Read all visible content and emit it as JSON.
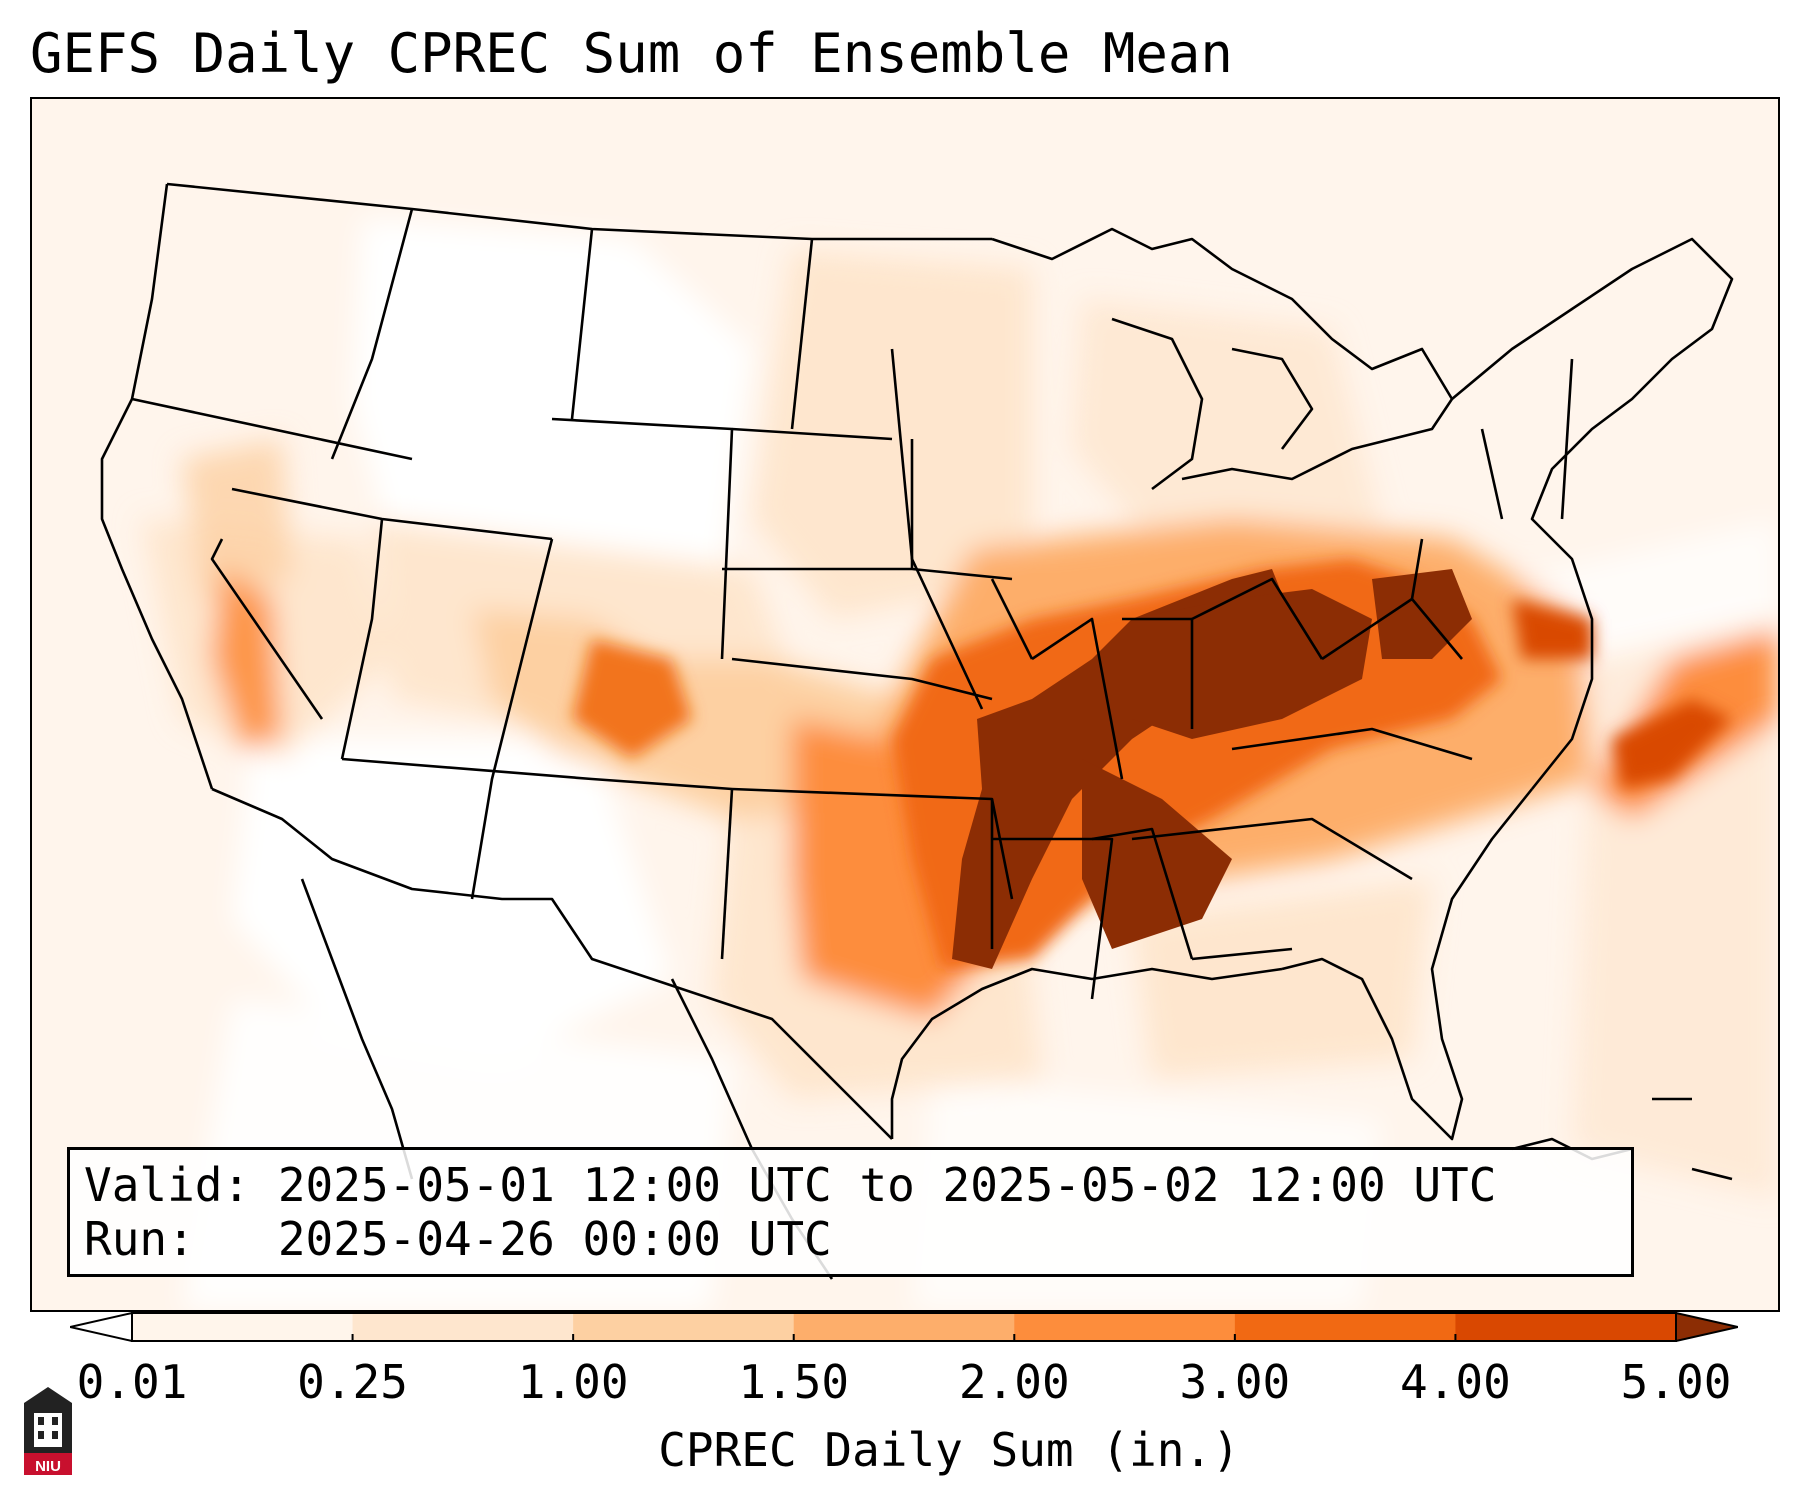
{
  "title": "GEFS Daily CPREC Sum of Ensemble Mean",
  "info": {
    "valid_line": "Valid: 2025-05-01 12:00 UTC to 2025-05-02 12:00 UTC",
    "run_line": "Run:   2025-04-26 00:00 UTC"
  },
  "colorbar": {
    "label": "CPREC Daily Sum (in.)",
    "ticks": [
      "0.01",
      "0.25",
      "1.00",
      "1.50",
      "2.00",
      "3.00",
      "4.00",
      "5.00"
    ],
    "colors": [
      "#fff5eb",
      "#fee6ce",
      "#fdd0a2",
      "#fdae6b",
      "#fd8d3c",
      "#f16913",
      "#d94801",
      "#8c2d04"
    ],
    "under_color": "#ffffff",
    "over_color": "#8c2d04",
    "extend": "both"
  },
  "map": {
    "region": "Continental United States",
    "background_color": "#fff5ec",
    "boundary_color": "#000000",
    "max_color": "#8c2d04"
  },
  "logo": {
    "text": "NIU",
    "icon": "university-tower-icon"
  }
}
